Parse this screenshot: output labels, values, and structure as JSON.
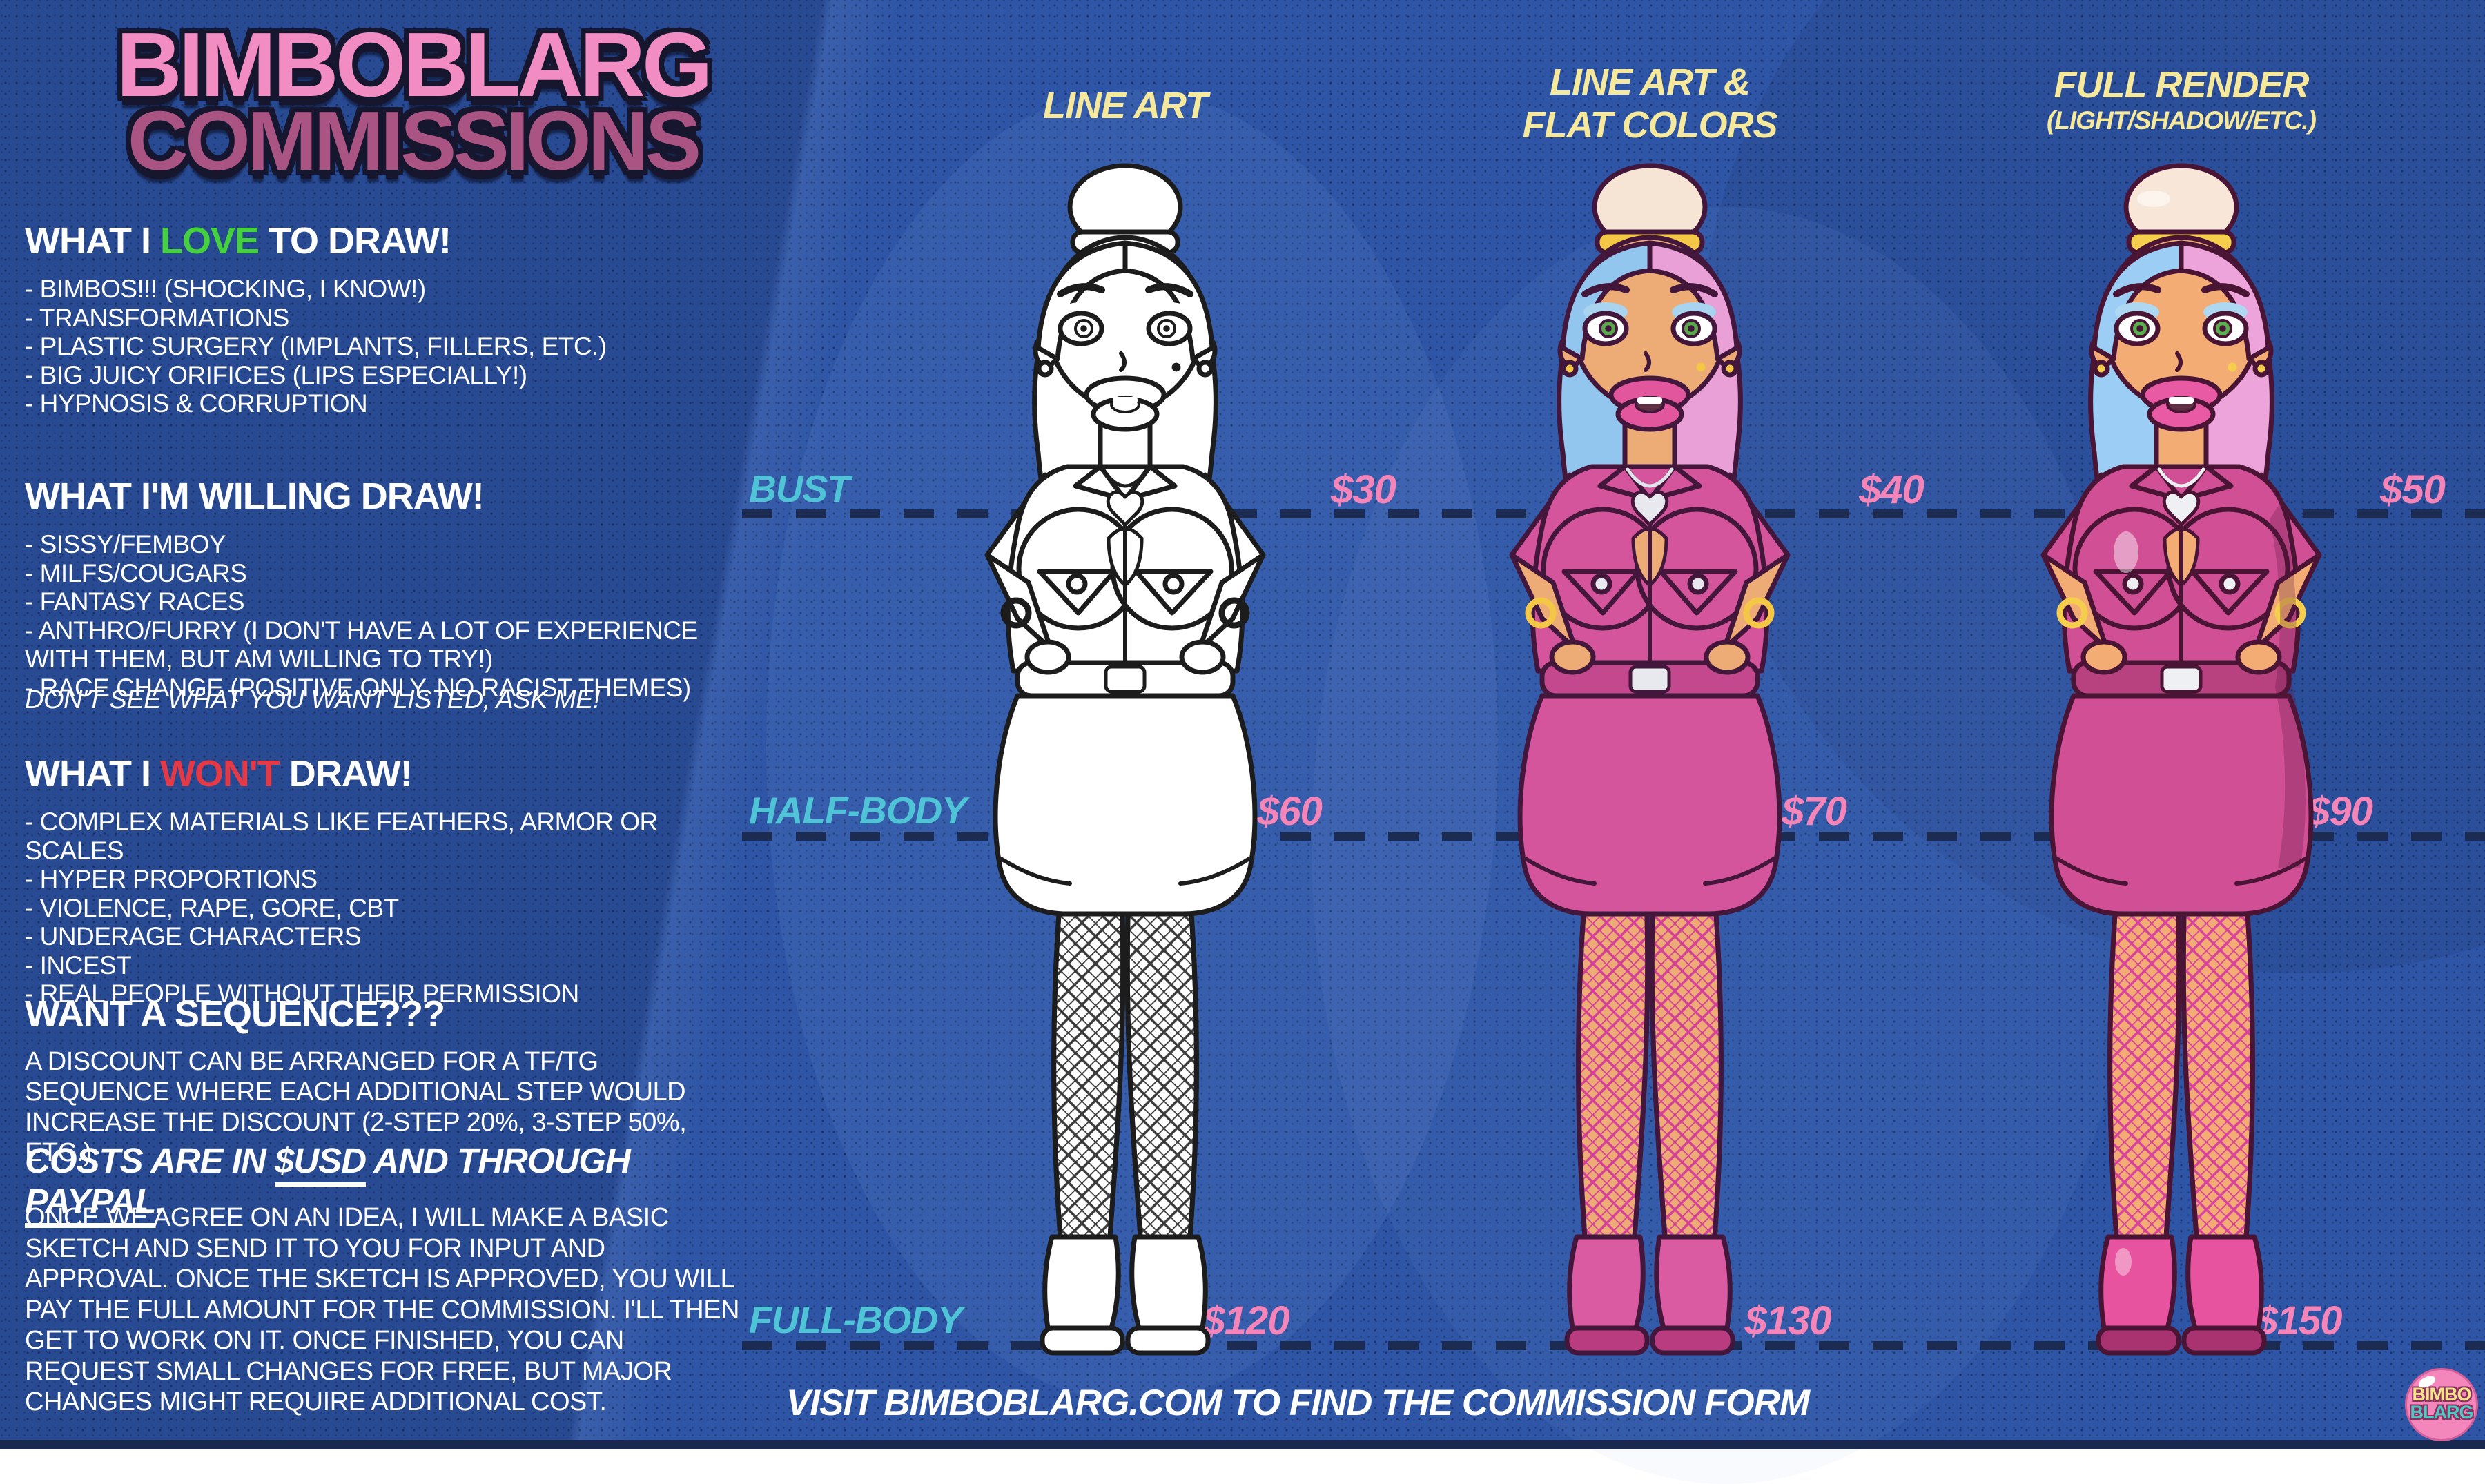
{
  "title": {
    "line1": "BIMBOBLARG",
    "line2": "COMMISSIONS"
  },
  "sections": {
    "love": {
      "prefix": "WHAT I ",
      "accent": "LOVE",
      "suffix": " TO DRAW!",
      "accent_color": "#45d13e",
      "items": [
        "- BIMBOS!!! (SHOCKING, I KNOW!)",
        "- TRANSFORMATIONS",
        "- PLASTIC SURGERY (IMPLANTS, FILLERS, ETC.)",
        "- BIG JUICY ORIFICES (LIPS ESPECIALLY!)",
        "- HYPNOSIS & CORRUPTION"
      ]
    },
    "willing": {
      "heading": "WHAT I'M WILLING DRAW!",
      "items": [
        "- SISSY/FEMBOY",
        "- MILFS/COUGARS",
        "- FANTASY RACES",
        "- ANTHRO/FURRY (I DON'T HAVE A LOT OF EXPERIENCE WITH THEM, BUT AM WILLING TO TRY!)",
        "- RACE CHANGE (POSITIVE ONLY. NO RACIST THEMES)"
      ]
    },
    "note": "DON'T SEE WHAT YOU WANT LISTED, ASK ME!",
    "wont": {
      "prefix": "WHAT I ",
      "accent": "WON'T",
      "suffix": " DRAW!",
      "accent_color": "#e63946",
      "items": [
        "- COMPLEX MATERIALS LIKE FEATHERS, ARMOR OR SCALES",
        "- HYPER PROPORTIONS",
        "- VIOLENCE, RAPE, GORE, CBT",
        "- UNDERAGE CHARACTERS",
        "- INCEST",
        "- REAL PEOPLE WITHOUT THEIR PERMISSION"
      ]
    },
    "sequence": {
      "heading": "WANT A SEQUENCE???",
      "body": "A DISCOUNT CAN BE ARRANGED FOR A TF/TG SEQUENCE WHERE EACH ADDITIONAL STEP WOULD INCREASE THE DISCOUNT (2-STEP 20%, 3-STEP 50%, ETC.)"
    },
    "costs": {
      "pre": "COSTS ARE IN ",
      "usd": "$USD",
      "mid": " AND THROUGH ",
      "paypal": "PAYPAL",
      "post": "."
    },
    "process": "ONCE WE AGREE ON AN IDEA, I WILL MAKE A BASIC SKETCH AND SEND IT TO YOU FOR INPUT AND APPROVAL. ONCE THE SKETCH IS APPROVED, YOU WILL PAY THE FULL AMOUNT FOR THE COMMISSION. I'LL THEN GET TO WORK ON IT. ONCE FINISHED, YOU CAN REQUEST SMALL CHANGES FOR FREE, BUT MAJOR CHANGES MIGHT REQUIRE ADDITIONAL COST."
  },
  "columns": [
    {
      "line1": "LINE ART",
      "line2": ""
    },
    {
      "line1": "LINE ART &",
      "line2": "FLAT COLORS"
    },
    {
      "line1": "FULL RENDER",
      "line2": "(LIGHT/SHADOW/ETC.)"
    }
  ],
  "tiers": [
    {
      "label": "BUST",
      "prices": [
        "$30",
        "$40",
        "$50"
      ]
    },
    {
      "label": "HALF-BODY",
      "prices": [
        "$60",
        "$70",
        "$90"
      ]
    },
    {
      "label": "FULL-BODY",
      "prices": [
        "$120",
        "$130",
        "$150"
      ]
    }
  ],
  "footer": {
    "text": "VISIT BIMBOBLARG.COM TO FIND THE COMMISSION FORM"
  },
  "logo": {
    "line1": "BIMBO",
    "line2": "BLARG"
  },
  "colors": {
    "background": "#2e55a6",
    "bottom_bar": "#19284f",
    "dashed_line": "#1c2b52",
    "tier_label": "#4fc4d6",
    "price": "#f584b8",
    "column_header": "#f6e99b",
    "title_line1": "#f18dc3",
    "title_line2": "#aa5483",
    "accent_green": "#45d13e",
    "accent_red": "#e63946",
    "logo_circle": "#f387bc",
    "logo_line1": "#f5e387",
    "logo_line2": "#4fc9c4"
  },
  "figures": [
    {
      "label": "line-art-figure",
      "palette": {
        "line": "#1c1c1c",
        "skin": "#ffffff",
        "hairBun": "#ffffff",
        "hairL": "#ffffff",
        "hairR": "#ffffff",
        "scrunchie": "#ffffff",
        "eye": "#ffffff",
        "shadow": "#ffffff",
        "lips": "#ffffff",
        "mouth": "#ffffff",
        "outfit": "#ffffff",
        "belt": "#ffffff",
        "metal": "#ffffff",
        "chain": "#1c1c1c",
        "net": "#3a3a3a",
        "shoe": "#ffffff",
        "shoeDark": "#ffffff",
        "beauty": "#1c1c1c",
        "bracelet": "#1c1c1c",
        "shade": "none",
        "gloss": 0
      }
    },
    {
      "label": "flat-color-figure",
      "palette": {
        "line": "#43173b",
        "skin": "#edab76",
        "hairBun": "#f6e4d5",
        "hairL": "#93c6ef",
        "hairR": "#e9a0d6",
        "scrunchie": "#f4c746",
        "eye": "#5aa84e",
        "shadow": "#a8d4ef",
        "lips": "#e1569d",
        "mouth": "#5e2f41",
        "outfit": "#d4559b",
        "belt": "#c4488d",
        "metal": "#e8e9ee",
        "chain": "#dfe3ea",
        "net": "#d43f98",
        "shoe": "#db5ba2",
        "shoeDark": "#b93c81",
        "beauty": "#f4c746",
        "bracelet": "#f4c746",
        "shade": "none",
        "gloss": 0
      }
    },
    {
      "label": "full-render-figure",
      "palette": {
        "line": "#4a1535",
        "skin": "#f3ad74",
        "hairBun": "#f8e7d8",
        "hairL": "#9ccdf4",
        "hairR": "#eda4da",
        "scrunchie": "#f6ce4e",
        "eye": "#58b04f",
        "shadow": "#aed8f2",
        "lips": "#e85aa4",
        "mouth": "#5e2f41",
        "outfit": "#d04f95",
        "belt": "#b8417f",
        "metal": "#eef0f4",
        "chain": "#eef0f4",
        "net": "#d8429c",
        "shoe": "#e8539f",
        "shoeDark": "#a83370",
        "beauty": "#f6ce4e",
        "bracelet": "#f6ce4e",
        "shade": "rgba(93,21,64,0.28)",
        "gloss": 1
      }
    }
  ]
}
